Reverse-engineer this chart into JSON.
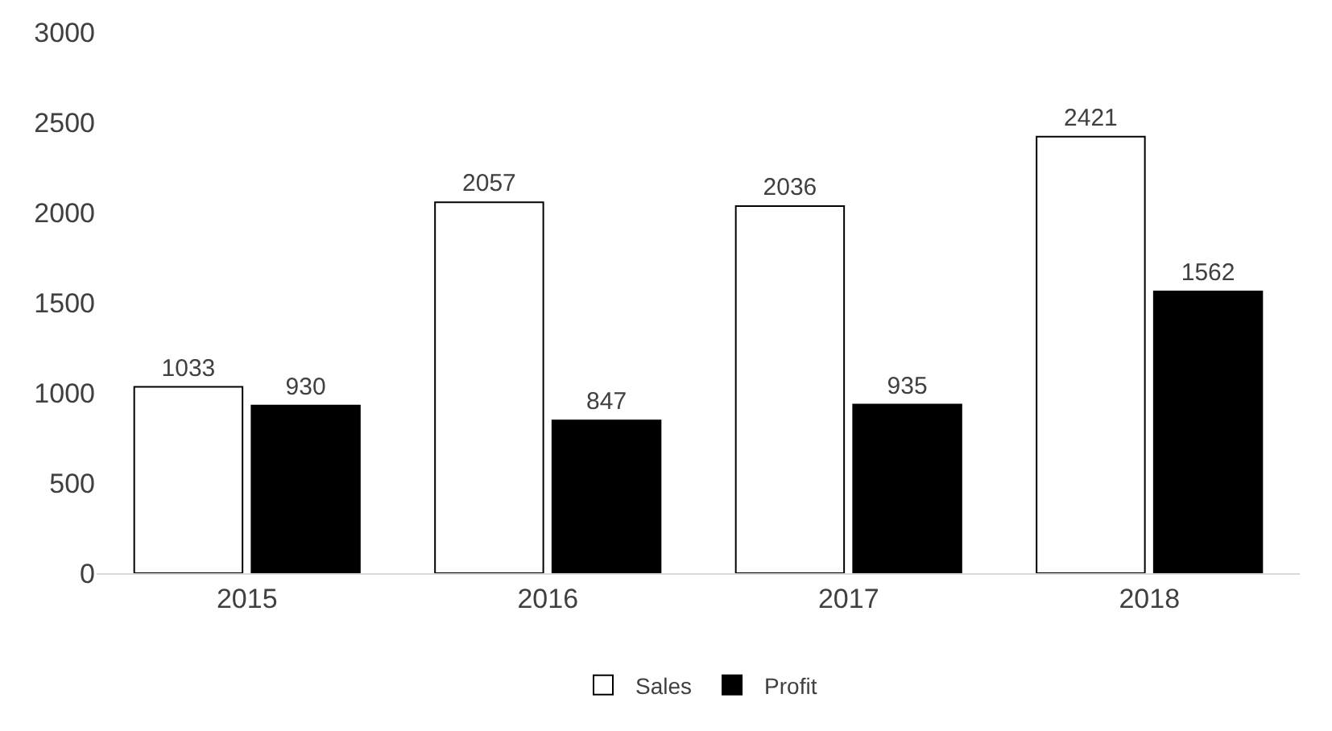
{
  "chart_data": {
    "type": "bar",
    "categories": [
      "2015",
      "2016",
      "2017",
      "2018"
    ],
    "series": [
      {
        "name": "Sales",
        "color": "#ffffff",
        "values": [
          1033,
          2057,
          2036,
          2421
        ]
      },
      {
        "name": "Profit",
        "color": "#000000",
        "values": [
          930,
          847,
          935,
          1562
        ]
      }
    ],
    "ylim": [
      0,
      3000
    ],
    "yticks": [
      0,
      500,
      1000,
      1500,
      2000,
      2500,
      3000
    ],
    "grid": false,
    "legend": "bottom",
    "data_labels": true
  }
}
